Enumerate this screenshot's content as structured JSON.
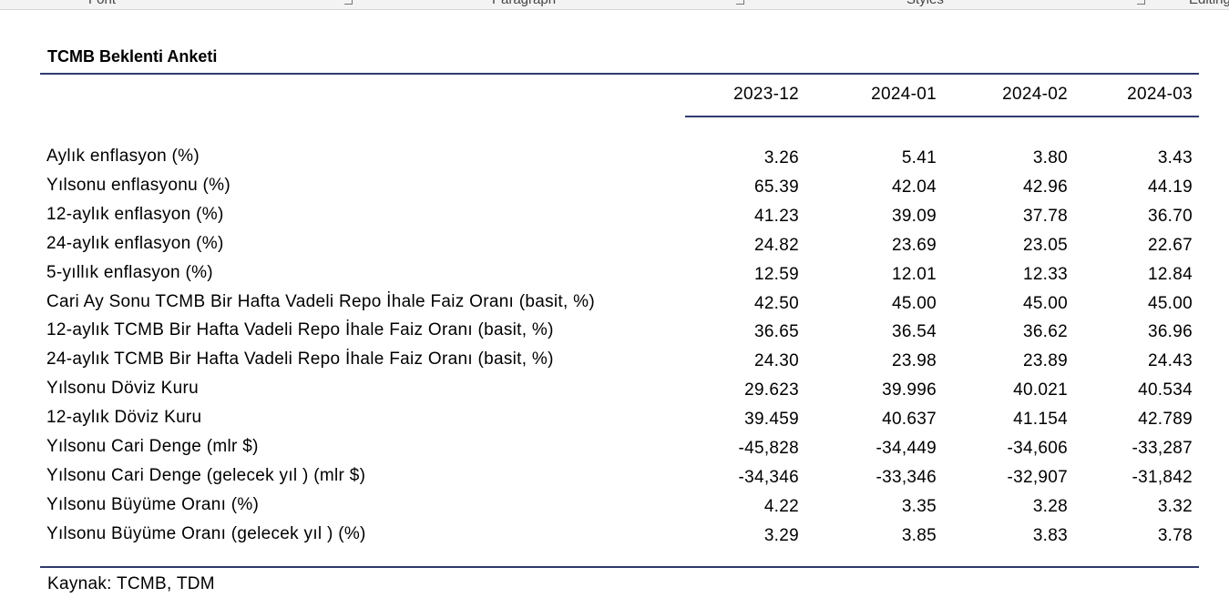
{
  "ribbon": [
    "Font",
    "Paragraph",
    "Styles",
    "Editing"
  ],
  "table": {
    "title": "TCMB Beklenti Anketi",
    "columns": [
      "2023-12",
      "2024-01",
      "2024-02",
      "2024-03"
    ],
    "rows": [
      [
        "Aylık enflasyon (%)",
        "3.26",
        "5.41",
        "3.80",
        "3.43"
      ],
      [
        "Yılsonu enflasyonu (%)",
        "65.39",
        "42.04",
        "42.96",
        "44.19"
      ],
      [
        "12-aylık enflasyon (%)",
        "41.23",
        "39.09",
        "37.78",
        "36.70"
      ],
      [
        "24-aylık enflasyon (%)",
        "24.82",
        "23.69",
        "23.05",
        "22.67"
      ],
      [
        "5-yıllık enflasyon (%)",
        "12.59",
        "12.01",
        "12.33",
        "12.84"
      ],
      [
        "Cari Ay Sonu TCMB Bir Hafta Vadeli Repo İhale Faiz Oranı (basit, %)",
        "42.50",
        "45.00",
        "45.00",
        "45.00"
      ],
      [
        "12-aylık TCMB Bir Hafta Vadeli Repo İhale Faiz Oranı (basit, %)",
        "36.65",
        "36.54",
        "36.62",
        "36.96"
      ],
      [
        "24-aylık TCMB Bir Hafta Vadeli Repo İhale Faiz Oranı (basit, %)",
        "24.30",
        "23.98",
        "23.89",
        "24.43"
      ],
      [
        "Yılsonu Döviz Kuru",
        "29.623",
        "39.996",
        "40.021",
        "40.534"
      ],
      [
        "12-aylık Döviz Kuru",
        "39.459",
        "40.637",
        "41.154",
        "42.789"
      ],
      [
        "Yılsonu Cari Denge (mlr $)",
        "-45,828",
        "-34,449",
        "-34,606",
        "-33,287"
      ],
      [
        "Yılsonu Cari Denge (gelecek yıl ) (mlr $)",
        "-34,346",
        "-33,346",
        "-32,907",
        "-31,842"
      ],
      [
        "Yılsonu Büyüme Oranı (%)",
        "4.22",
        "3.35",
        "3.28",
        "3.32"
      ],
      [
        "Yılsonu Büyüme Oranı (gelecek yıl ) (%)",
        "3.29",
        "3.85",
        "3.83",
        "3.78"
      ]
    ],
    "source": "Kaynak: TCMB, TDM"
  }
}
